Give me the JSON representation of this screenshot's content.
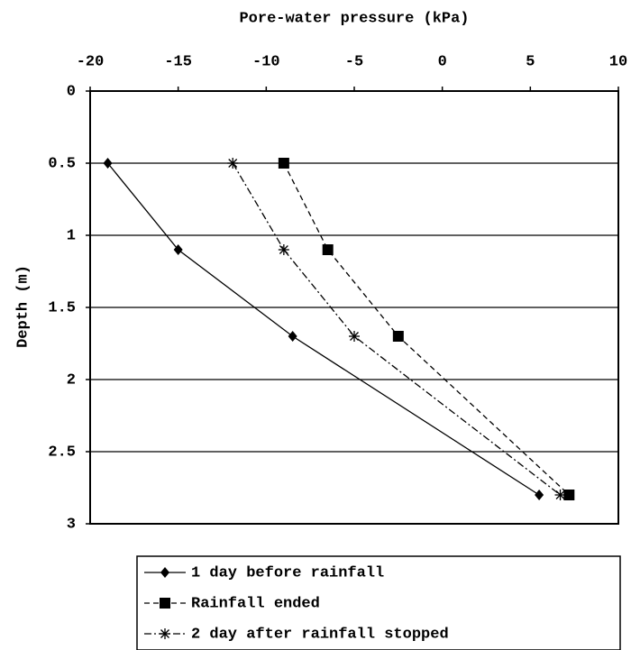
{
  "chart_data": {
    "type": "line",
    "xlabel": "Pore-water pressure (kPa)",
    "ylabel": "Depth (m)",
    "xlim": [
      -20,
      10
    ],
    "xticks": [
      -20,
      -15,
      -10,
      -5,
      0,
      5,
      10
    ],
    "ylim": [
      0,
      3
    ],
    "yticks": [
      0,
      0.5,
      1,
      1.5,
      2,
      2.5,
      3
    ],
    "y_inverted": true,
    "x_axis_position": "top",
    "grid": "y",
    "legend": "bottom",
    "series": [
      {
        "name": "1 day before rainfall",
        "color": "#000000",
        "marker": "diamond",
        "line_style": "solid",
        "x": [
          -19,
          -15,
          -8.5,
          5.5
        ],
        "values": [
          0.5,
          1.1,
          1.7,
          2.8
        ]
      },
      {
        "name": "Rainfall ended",
        "color": "#000000",
        "marker": "square",
        "line_style": "dashed",
        "x": [
          -9,
          -6.5,
          -2.5,
          7.2
        ],
        "values": [
          0.5,
          1.1,
          1.7,
          2.8
        ]
      },
      {
        "name": "2 day after rainfall stopped",
        "color": "#000000",
        "marker": "star",
        "line_style": "dashdot",
        "x": [
          -11.9,
          -9,
          -5,
          6.7
        ],
        "values": [
          0.5,
          1.1,
          1.7,
          2.8
        ]
      }
    ]
  }
}
